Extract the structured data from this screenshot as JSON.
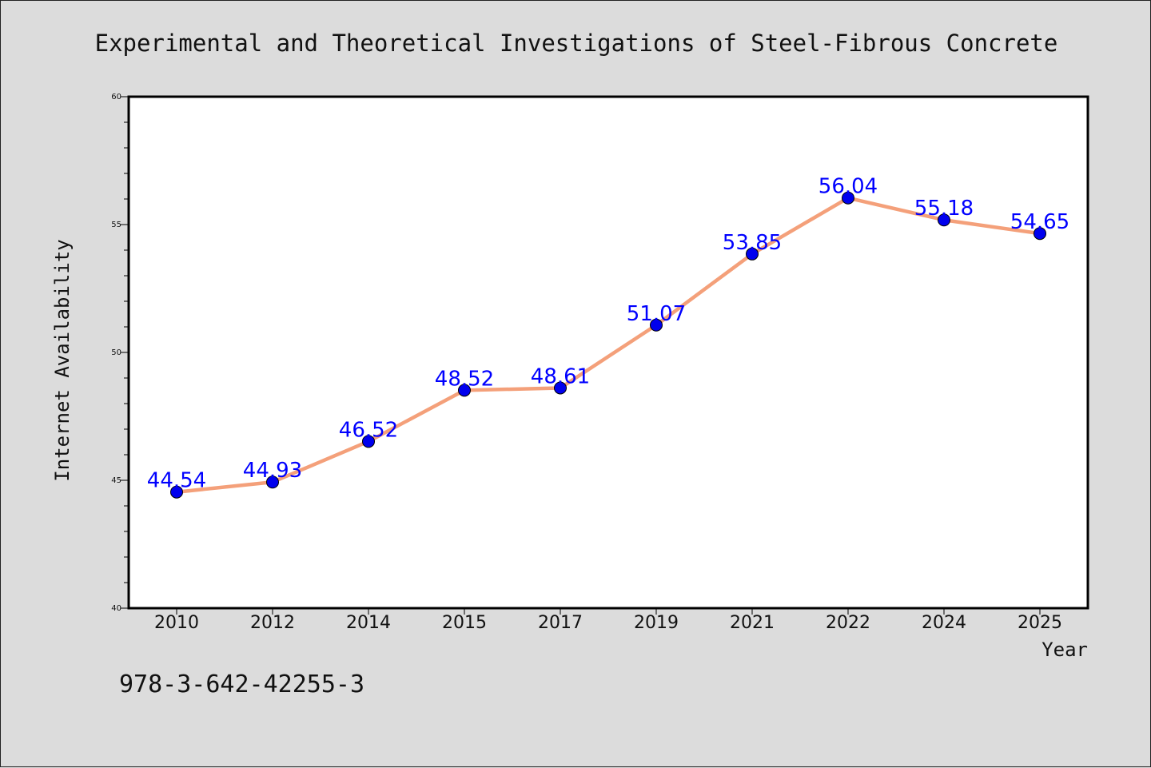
{
  "chart_data": {
    "type": "line",
    "title": "Experimental and Theoretical Investigations of Steel-Fibrous Concrete",
    "xlabel": "Year",
    "ylabel": "Internet Availability",
    "categories": [
      "2010",
      "2012",
      "2014",
      "2015",
      "2017",
      "2019",
      "2021",
      "2022",
      "2024",
      "2025"
    ],
    "values": [
      44.54,
      44.93,
      46.52,
      48.52,
      48.61,
      51.07,
      53.85,
      56.04,
      55.18,
      54.65
    ],
    "data_labels": [
      "44.54",
      "44.93",
      "46.52",
      "48.52",
      "48.61",
      "51.07",
      "53.85",
      "56.04",
      "55.18",
      "54.65"
    ],
    "ylim": [
      40,
      60
    ],
    "y_ticks": [
      "40",
      "45",
      "50",
      "55",
      "60"
    ],
    "grid": false,
    "legend": "none",
    "colors": {
      "line": "#f4a07a",
      "marker": "#0000ee",
      "label": "#0000ff"
    }
  },
  "footer_text": "978-3-642-42255-3"
}
